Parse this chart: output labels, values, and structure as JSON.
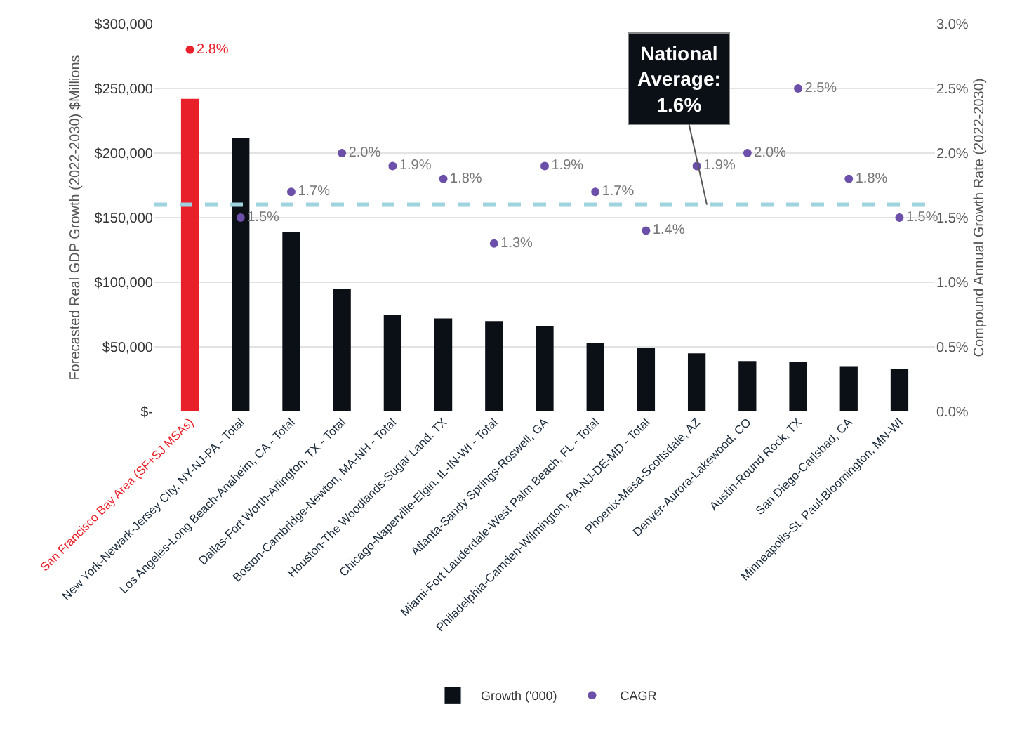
{
  "chart_data": {
    "type": "bar",
    "ylabel": "Forecasted Real GDP Growth (2022-2030) $Millions",
    "y2label": "Compound Annual Growth Rate (2022-2030)",
    "categories": [
      "San Francisco Bay Area (SF+SJ MSAs)",
      "New York-Newark-Jersey City, NY-NJ-PA - Total",
      "Los Angeles-Long Beach-Anaheim, CA - Total",
      "Dallas-Fort Worth-Arlington, TX - Total",
      "Boston-Cambridge-Newton, MA-NH - Total",
      "Houston-The Woodlands-Sugar Land, TX",
      "Chicago-Naperville-Elgin, IL-IN-WI - Total",
      "Atlanta-Sandy Springs-Roswell, GA",
      "Miami-Fort Lauderdale-West Palm Beach, FL - Total",
      "Philadelphia-Camden-Wilmington, PA-NJ-DE-MD - Total",
      "Phoenix-Mesa-Scottsdale, AZ",
      "Denver-Aurora-Lakewood, CO",
      "Austin-Round Rock, TX",
      "San Diego-Carlsbad, CA",
      "Minneapolis-St. Paul-Bloomington, MN-WI"
    ],
    "series": [
      {
        "name": "Growth ('000)",
        "color": "#0b0f16",
        "colors": [
          "#e8202a",
          "#0b0f16",
          "#0b0f16",
          "#0b0f16",
          "#0b0f16",
          "#0b0f16",
          "#0b0f16",
          "#0b0f16",
          "#0b0f16",
          "#0b0f16",
          "#0b0f16",
          "#0b0f16",
          "#0b0f16",
          "#0b0f16",
          "#0b0f16"
        ],
        "values": [
          242000,
          212000,
          139000,
          95000,
          75000,
          72000,
          70000,
          66000,
          53000,
          49000,
          45000,
          39000,
          38000,
          35000,
          33000
        ]
      },
      {
        "name": "CAGR",
        "type": "scatter",
        "axis": "y2",
        "color": "#6b4fa8",
        "colors": [
          "#e8202a",
          "#6b4fa8",
          "#6b4fa8",
          "#6b4fa8",
          "#6b4fa8",
          "#6b4fa8",
          "#6b4fa8",
          "#6b4fa8",
          "#6b4fa8",
          "#6b4fa8",
          "#6b4fa8",
          "#6b4fa8",
          "#6b4fa8",
          "#6b4fa8",
          "#6b4fa8"
        ],
        "values": [
          2.8,
          1.5,
          1.7,
          2.0,
          1.9,
          1.8,
          1.3,
          1.9,
          1.7,
          1.4,
          1.9,
          2.0,
          2.5,
          1.8,
          1.5
        ],
        "value_labels": [
          "2.8%",
          "1.5%",
          "1.7%",
          "2.0%",
          "1.9%",
          "1.8%",
          "1.3%",
          "1.9%",
          "1.7%",
          "1.4%",
          "1.9%",
          "2.0%",
          "2.5%",
          "1.8%",
          "1.5%"
        ]
      }
    ],
    "ylim": [
      0,
      300000
    ],
    "yticks": [
      {
        "value": 0,
        "label": "$-"
      },
      {
        "value": 50000,
        "label": "$50,000"
      },
      {
        "value": 100000,
        "label": "$100,000"
      },
      {
        "value": 150000,
        "label": "$150,000"
      },
      {
        "value": 200000,
        "label": "$200,000"
      },
      {
        "value": 250000,
        "label": "$250,000"
      },
      {
        "value": 300000,
        "label": "$300,000"
      }
    ],
    "y2lim": [
      0,
      3.0
    ],
    "y2ticks": [
      {
        "value": 0,
        "label": "0.0%"
      },
      {
        "value": 0.5,
        "label": "0.5%"
      },
      {
        "value": 1.0,
        "label": "1.0%"
      },
      {
        "value": 1.5,
        "label": "1.5%"
      },
      {
        "value": 2.0,
        "label": "2.0%"
      },
      {
        "value": 2.5,
        "label": "2.5%"
      },
      {
        "value": 3.0,
        "label": "3.0%"
      }
    ],
    "ref_lines": [
      {
        "axis": "y2",
        "value": 1.6,
        "label": "National\nAverage:\n1.6%",
        "color": "#9fd3e0",
        "line_style": "dashed"
      }
    ],
    "grid": "y",
    "legend": "bottom",
    "marker": "circle"
  }
}
